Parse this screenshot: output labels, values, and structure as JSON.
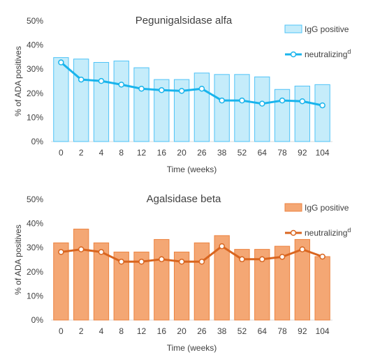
{
  "chart_data": [
    {
      "type": "bar",
      "title": "Pegunigalsidase alfa",
      "xlabel": "Time (weeks)",
      "ylabel": "% of ADA positives",
      "ylim": [
        0,
        50
      ],
      "yticks": [
        "0%",
        "10%",
        "20%",
        "30%",
        "40%",
        "50%"
      ],
      "categories": [
        "0",
        "2",
        "4",
        "8",
        "12",
        "16",
        "20",
        "26",
        "38",
        "52",
        "64",
        "78",
        "92",
        "104"
      ],
      "grid": false,
      "legend_position": "top-right",
      "colors": {
        "bar_fill": "#c5ecfa",
        "bar_stroke": "#4fc3f7",
        "line": "#19b4ec"
      },
      "series": [
        {
          "name": "IgG positive",
          "kind": "bar",
          "values": [
            34.8,
            34.2,
            32.8,
            33.4,
            30.6,
            25.7,
            25.7,
            28.4,
            27.8,
            27.8,
            26.8,
            21.6,
            23.0,
            23.6
          ]
        },
        {
          "name": "neutralizing",
          "name_superscript": "d",
          "kind": "line",
          "values": [
            32.8,
            25.7,
            25.1,
            23.6,
            21.9,
            21.3,
            21.0,
            21.9,
            17.0,
            17.0,
            15.7,
            17.0,
            16.7,
            15.0
          ]
        }
      ]
    },
    {
      "type": "bar",
      "title": "Agalsidase beta",
      "xlabel": "Time (weeks)",
      "ylabel": "% of ADA positives",
      "ylim": [
        0,
        50
      ],
      "yticks": [
        "0%",
        "10%",
        "20%",
        "30%",
        "40%",
        "50%"
      ],
      "categories": [
        "0",
        "2",
        "4",
        "8",
        "12",
        "16",
        "20",
        "26",
        "38",
        "52",
        "64",
        "78",
        "92",
        "104"
      ],
      "grid": false,
      "legend_position": "top-right",
      "colors": {
        "bar_fill": "#f4a774",
        "bar_stroke": "#ec8340",
        "line": "#d9651f"
      },
      "series": [
        {
          "name": "IgG positive",
          "kind": "bar",
          "values": [
            32.0,
            37.7,
            32.0,
            28.2,
            28.2,
            33.4,
            28.2,
            32.0,
            35.0,
            29.3,
            29.3,
            30.6,
            33.4,
            26.3
          ]
        },
        {
          "name": "neutralizing",
          "name_superscript": "d",
          "kind": "line",
          "values": [
            28.2,
            29.3,
            28.2,
            24.2,
            24.2,
            25.2,
            24.2,
            24.2,
            30.6,
            25.2,
            25.2,
            26.2,
            29.3,
            26.3
          ]
        }
      ]
    }
  ]
}
